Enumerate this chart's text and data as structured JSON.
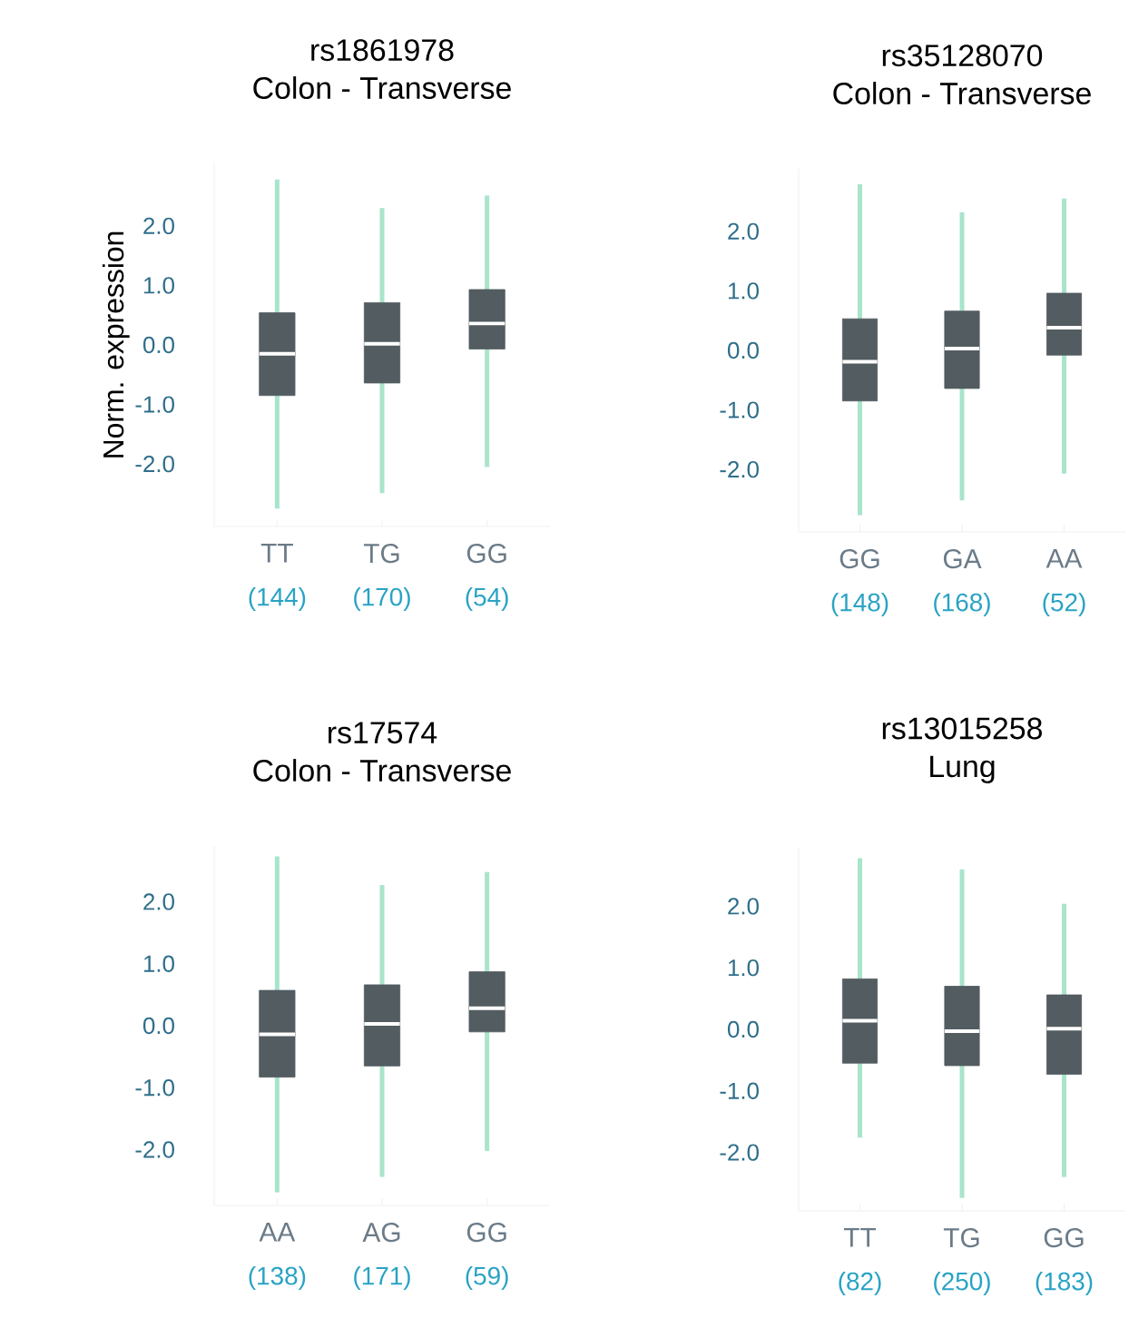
{
  "chart_data": [
    {
      "type": "box",
      "title": "rs1861978",
      "subtitle": "Colon - Transverse",
      "ylabel": "Norm. expression",
      "categories": [
        "TT",
        "TG",
        "GG"
      ],
      "annotations": [
        "(144)",
        "(170)",
        "(54)"
      ],
      "color": "#525c61",
      "boxes": [
        {
          "low": -2.75,
          "q1": -0.85,
          "median": -0.15,
          "q3": 0.54,
          "high": 2.78
        },
        {
          "low": -2.49,
          "q1": -0.64,
          "median": 0.02,
          "q3": 0.71,
          "high": 2.3
        },
        {
          "low": -2.05,
          "q1": -0.07,
          "median": 0.36,
          "q3": 0.93,
          "high": 2.51
        }
      ],
      "ylim": [
        -3.05,
        3.05
      ],
      "yticks": [
        {
          "value": -2,
          "label": "-2.0"
        },
        {
          "value": -1,
          "label": "-1.0"
        },
        {
          "value": 0,
          "label": "0.0"
        },
        {
          "value": 1,
          "label": "1.0"
        },
        {
          "value": 2,
          "label": "2.0"
        }
      ]
    },
    {
      "type": "box",
      "title": "rs35128070",
      "subtitle": "Colon - Transverse",
      "categories": [
        "GG",
        "GA",
        "AA"
      ],
      "annotations": [
        "(148)",
        "(168)",
        "(52)"
      ],
      "color": "#525c61",
      "boxes": [
        {
          "low": -2.77,
          "q1": -0.85,
          "median": -0.19,
          "q3": 0.53,
          "high": 2.79
        },
        {
          "low": -2.52,
          "q1": -0.64,
          "median": 0.03,
          "q3": 0.66,
          "high": 2.32
        },
        {
          "low": -2.07,
          "q1": -0.08,
          "median": 0.38,
          "q3": 0.96,
          "high": 2.55
        }
      ],
      "ylim": [
        -3.05,
        3.05
      ],
      "yticks": [
        {
          "value": -2,
          "label": "-2.0"
        },
        {
          "value": -1,
          "label": "-1.0"
        },
        {
          "value": 0,
          "label": "0.0"
        },
        {
          "value": 1,
          "label": "1.0"
        },
        {
          "value": 2,
          "label": "2.0"
        }
      ]
    },
    {
      "type": "box",
      "title": "rs17574",
      "subtitle": "Colon - Transverse",
      "categories": [
        "AA",
        "AG",
        "GG"
      ],
      "annotations": [
        "(138)",
        "(171)",
        "(59)"
      ],
      "color": "#525c61",
      "boxes": [
        {
          "low": -2.69,
          "q1": -0.83,
          "median": -0.14,
          "q3": 0.57,
          "high": 2.73
        },
        {
          "low": -2.44,
          "q1": -0.65,
          "median": 0.03,
          "q3": 0.66,
          "high": 2.27
        },
        {
          "low": -2.02,
          "q1": -0.1,
          "median": 0.28,
          "q3": 0.87,
          "high": 2.48
        }
      ],
      "ylim": [
        -2.9,
        2.9
      ],
      "yticks": [
        {
          "value": -2,
          "label": "-2.0"
        },
        {
          "value": -1,
          "label": "-1.0"
        },
        {
          "value": 0,
          "label": "0.0"
        },
        {
          "value": 1,
          "label": "1.0"
        },
        {
          "value": 2,
          "label": "2.0"
        }
      ]
    },
    {
      "type": "box",
      "title": "rs13015258",
      "subtitle": "Lung",
      "categories": [
        "TT",
        "TG",
        "GG"
      ],
      "annotations": [
        "(82)",
        "(250)",
        "(183)"
      ],
      "color": "#525c61",
      "boxes": [
        {
          "low": -1.76,
          "q1": -0.55,
          "median": 0.14,
          "q3": 0.82,
          "high": 2.78
        },
        {
          "low": -2.74,
          "q1": -0.59,
          "median": -0.03,
          "q3": 0.7,
          "high": 2.6
        },
        {
          "low": -2.4,
          "q1": -0.73,
          "median": 0.01,
          "q3": 0.56,
          "high": 2.04
        }
      ],
      "ylim": [
        -2.95,
        2.95
      ],
      "yticks": [
        {
          "value": -2,
          "label": "-2.0"
        },
        {
          "value": -1,
          "label": "-1.0"
        },
        {
          "value": 0,
          "label": "0.0"
        },
        {
          "value": 1,
          "label": "1.0"
        },
        {
          "value": 2,
          "label": "2.0"
        }
      ]
    }
  ]
}
